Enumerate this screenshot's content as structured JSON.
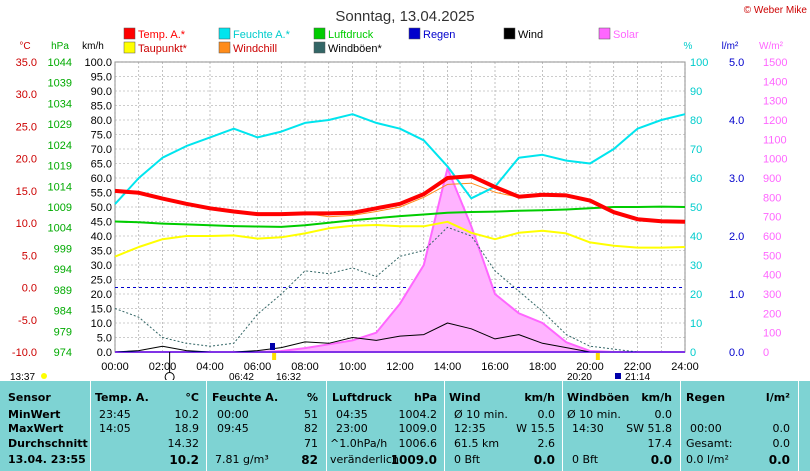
{
  "title": "Sonntag, 13.04.2025",
  "credit": "© Weber Mike",
  "axis_units": {
    "temp": "°C",
    "hpa": "hPa",
    "kmh": "km/h",
    "pct": "%",
    "rain": "l/m²",
    "solar": "W/m²"
  },
  "legend": [
    {
      "label": "Temp. A.*",
      "color": "#ff0000"
    },
    {
      "label": "Feuchte A.*",
      "color": "#00e5ee"
    },
    {
      "label": "Luftdruck",
      "color": "#00cc00"
    },
    {
      "label": "Regen",
      "color": "#0000cc"
    },
    {
      "label": "Wind",
      "color": "#000000"
    },
    {
      "label": "Solar",
      "color": "#ff66ff"
    },
    {
      "label": "Taupunkt*",
      "color": "#ffff00"
    },
    {
      "label": "Windchill",
      "color": "#ff8c1a"
    },
    {
      "label": "Windböen*",
      "color": "#336666"
    }
  ],
  "sunrise": "06:42",
  "sunset": "20:20",
  "moonrise": "16:32",
  "moonset": "21:14",
  "last_update": "13:37",
  "chart_data": {
    "type": "line",
    "title": "Sonntag, 13.04.2025",
    "x_ticks": [
      "00:00",
      "02:00",
      "04:00",
      "06:00",
      "08:00",
      "10:00",
      "12:00",
      "14:00",
      "16:00",
      "18:00",
      "20:00",
      "22:00",
      "24:00"
    ],
    "axes": {
      "temp_c": {
        "ticks": [
          "35.0",
          "30.0",
          "25.0",
          "20.0",
          "15.0",
          "10.0",
          "5.0",
          "0.0",
          "-5.0",
          "-10.0"
        ],
        "range": [
          -10,
          35
        ]
      },
      "pressure_hpa": {
        "ticks": [
          "1044",
          "1039",
          "1034",
          "1029",
          "1024",
          "1019",
          "1014",
          "1009",
          "1004",
          "999",
          "994",
          "989",
          "984",
          "979",
          "974"
        ],
        "range": [
          974,
          1044
        ]
      },
      "wind_kmh": {
        "ticks": [
          "100.0",
          "95.0",
          "90.0",
          "85.0",
          "80.0",
          "75.0",
          "70.0",
          "65.0",
          "60.0",
          "55.0",
          "50.0",
          "45.0",
          "40.0",
          "35.0",
          "30.0",
          "25.0",
          "20.0",
          "15.0",
          "10.0",
          "5.0",
          "0.0"
        ],
        "range": [
          0,
          100
        ]
      },
      "humidity_pct": {
        "ticks": [
          "100",
          "90",
          "80",
          "70",
          "60",
          "50",
          "40",
          "30",
          "20",
          "10",
          "0"
        ],
        "range": [
          0,
          100
        ]
      },
      "rain_lm2": {
        "ticks": [
          "5.0",
          "4.0",
          "3.0",
          "2.0",
          "1.0",
          "0.0"
        ],
        "range": [
          0,
          5
        ]
      },
      "solar_wm2": {
        "ticks": [
          "1500",
          "1400",
          "1300",
          "1200",
          "1100",
          "1000",
          "900",
          "800",
          "700",
          "600",
          "500",
          "400",
          "300",
          "200",
          "100",
          "0"
        ],
        "range": [
          0,
          1500
        ]
      }
    },
    "x": [
      0,
      1,
      2,
      3,
      4,
      5,
      6,
      7,
      8,
      9,
      10,
      11,
      12,
      13,
      14,
      15,
      16,
      17,
      18,
      19,
      20,
      21,
      22,
      23,
      24
    ],
    "series": [
      {
        "name": "Temp. A.*",
        "axis": "temp_c",
        "color": "#ff0000",
        "values": [
          15.0,
          14.7,
          13.8,
          13.0,
          12.3,
          11.8,
          11.4,
          11.4,
          11.5,
          11.5,
          11.6,
          12.3,
          13.0,
          14.5,
          17.0,
          17.3,
          15.6,
          14.1,
          14.4,
          14.3,
          13.5,
          11.7,
          10.6,
          10.3,
          10.2
        ]
      },
      {
        "name": "Feuchte A.*",
        "axis": "humidity_pct",
        "color": "#00e5ee",
        "values": [
          51,
          60,
          67,
          71,
          74,
          77,
          74,
          76,
          79,
          80,
          82,
          79,
          77,
          73,
          64,
          53,
          57,
          67,
          68,
          66,
          65,
          70,
          77,
          80,
          82
        ]
      },
      {
        "name": "Luftdruck",
        "axis": "pressure_hpa",
        "color": "#00cc00",
        "values": [
          1005.5,
          1005.3,
          1005.0,
          1004.8,
          1004.6,
          1004.4,
          1004.3,
          1004.2,
          1004.6,
          1005.2,
          1005.8,
          1006.3,
          1006.8,
          1007.2,
          1007.6,
          1007.8,
          1007.9,
          1008.1,
          1008.2,
          1008.4,
          1008.7,
          1009.0,
          1009.0,
          1009.1,
          1009.0
        ]
      },
      {
        "name": "Taupunkt*",
        "axis": "temp_c",
        "color": "#ffff00",
        "values": [
          4.8,
          6.3,
          7.5,
          8.0,
          8.0,
          8.1,
          7.6,
          7.8,
          8.4,
          9.2,
          9.6,
          9.7,
          9.5,
          9.5,
          10.2,
          8.5,
          7.5,
          8.5,
          8.8,
          8.4,
          7.0,
          6.5,
          6.2,
          6.2,
          6.3
        ]
      },
      {
        "name": "Windchill",
        "axis": "temp_c",
        "color": "#ff8c1a",
        "values": [
          15.0,
          14.7,
          13.8,
          13.0,
          12.3,
          11.8,
          11.4,
          11.4,
          11.5,
          11.0,
          11.2,
          11.8,
          12.5,
          14.0,
          16.0,
          16.2,
          14.8,
          14.0,
          14.4,
          14.3,
          13.5,
          11.7,
          10.6,
          10.3,
          10.2
        ]
      },
      {
        "name": "Wind",
        "axis": "wind_kmh",
        "color": "#000000",
        "values": [
          0,
          0.5,
          2.0,
          0.5,
          0,
          0,
          0.5,
          1.5,
          3.5,
          3.0,
          5.0,
          4.0,
          5.5,
          6.0,
          10.0,
          8.0,
          4.5,
          6.0,
          3.0,
          1.5,
          0,
          0,
          0,
          0,
          0
        ]
      },
      {
        "name": "Windböen*",
        "axis": "wind_kmh",
        "color": "#336666",
        "values": [
          15,
          12,
          5,
          3,
          2,
          3,
          13,
          20,
          28,
          27,
          29,
          26,
          33,
          35,
          43,
          40,
          28,
          21,
          14,
          6,
          2,
          1,
          0,
          0,
          0
        ]
      },
      {
        "name": "Solar",
        "axis": "solar_wm2",
        "color": "#ff66ff",
        "values": [
          0,
          0,
          0,
          0,
          0,
          0,
          0,
          5,
          20,
          40,
          60,
          100,
          250,
          450,
          950,
          650,
          300,
          200,
          150,
          50,
          5,
          0,
          0,
          0,
          0
        ]
      },
      {
        "name": "Regen",
        "axis": "rain_lm2",
        "color": "#0000cc",
        "values": [
          0,
          0,
          0,
          0,
          0,
          0,
          0,
          0,
          0,
          0,
          0,
          0,
          0,
          0,
          0,
          0,
          0,
          0,
          0,
          0,
          0,
          0,
          0,
          0,
          0
        ]
      }
    ]
  },
  "stats": {
    "row_labels": [
      "Sensor",
      "MinWert",
      "MaxWert",
      "Durchschnitt",
      "13.04. 23:55"
    ],
    "temp": {
      "header": "Temp. A.",
      "unit": "°C",
      "min_time": "23:45",
      "min_val": "10.2",
      "max_time": "14:05",
      "max_val": "18.9",
      "avg": "14.32",
      "current": "10.2"
    },
    "humidity": {
      "header": "Feuchte A.",
      "unit": "%",
      "min_time": "00:00",
      "min_val": "51",
      "max_time": "09:45",
      "max_val": "82",
      "avg": "71",
      "abs": "7.81 g/m³",
      "current": "82"
    },
    "pressure": {
      "header": "Luftdruck",
      "unit": "hPa",
      "min_time": "04:35",
      "min_val": "1004.2",
      "max_time": "23:00",
      "max_val": "1009.0",
      "trend_label": "^1.0hPa/h",
      "avg": "1006.6",
      "trend_text": "veränderlich",
      "current": "1009.0"
    },
    "wind": {
      "header": "Wind",
      "unit": "km/h",
      "row1_label": "Ø 10 min.",
      "row1_val": "0.0",
      "row2_time": "12:35",
      "row2_val": "W 15.5",
      "row3_label": "61.5 km",
      "row3_val": "2.6",
      "row4_label": "0 Bft",
      "row4_val": "0.0"
    },
    "gusts": {
      "header": "Windböen",
      "unit": "km/h",
      "row1_label": "Ø 10 min.",
      "row1_val": "0.0",
      "row2_time": "14:30",
      "row2_val": "SW 51.8",
      "row3_val": "17.4",
      "row4_label": "0 Bft",
      "row4_val": "0.0"
    },
    "rain": {
      "header": "Regen",
      "unit": "l/m²",
      "row2_time": "00:00",
      "row2_val": "0.0",
      "row3_label": "Gesamt:",
      "row3_val": "0.0",
      "row4_label": "0.0 l/m²",
      "row4_val": "0.0"
    }
  }
}
